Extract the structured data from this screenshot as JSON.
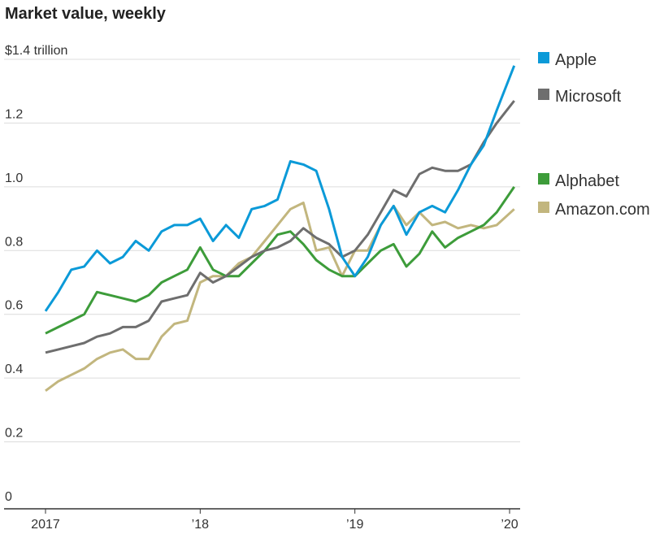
{
  "chart_data": {
    "type": "line",
    "title": "Market value, weekly",
    "y_unit_label": "$1.4 trillion",
    "ylim": [
      0,
      1.4
    ],
    "y_ticks": [
      0,
      0.2,
      0.4,
      0.6,
      0.8,
      1.0,
      1.2,
      1.4
    ],
    "y_tick_labels": [
      "0",
      "0.2",
      "0.4",
      "0.6",
      "0.8",
      "1.0",
      "1.2",
      "$1.4 trillion"
    ],
    "x_ticks": [
      2017,
      2018,
      2019,
      2020
    ],
    "x_tick_labels": [
      "2017",
      "’18",
      "’19",
      "’20"
    ],
    "xlim": [
      2017,
      2020.05
    ],
    "grid": true,
    "legend_placement": "right",
    "x": [
      2017.0,
      2017.083,
      2017.167,
      2017.25,
      2017.333,
      2017.417,
      2017.5,
      2017.583,
      2017.667,
      2017.75,
      2017.833,
      2017.917,
      2018.0,
      2018.083,
      2018.167,
      2018.25,
      2018.333,
      2018.417,
      2018.5,
      2018.583,
      2018.667,
      2018.75,
      2018.833,
      2018.917,
      2019.0,
      2019.083,
      2019.167,
      2019.25,
      2019.333,
      2019.417,
      2019.5,
      2019.583,
      2019.667,
      2019.75,
      2019.833,
      2019.917,
      2020.03
    ],
    "series": [
      {
        "name": "Apple",
        "color": "#0b9ad8",
        "legend_value": 1.38,
        "values": [
          0.61,
          0.67,
          0.74,
          0.75,
          0.8,
          0.76,
          0.78,
          0.83,
          0.8,
          0.86,
          0.88,
          0.88,
          0.9,
          0.83,
          0.88,
          0.84,
          0.93,
          0.94,
          0.96,
          1.08,
          1.07,
          1.05,
          0.93,
          0.78,
          0.72,
          0.78,
          0.88,
          0.94,
          0.85,
          0.92,
          0.94,
          0.92,
          0.99,
          1.07,
          1.13,
          1.24,
          1.38
        ]
      },
      {
        "name": "Microsoft",
        "color": "#6e6e6e",
        "legend_value": 1.27,
        "values": [
          0.48,
          0.49,
          0.5,
          0.51,
          0.53,
          0.54,
          0.56,
          0.56,
          0.58,
          0.64,
          0.65,
          0.66,
          0.73,
          0.7,
          0.72,
          0.75,
          0.78,
          0.8,
          0.81,
          0.83,
          0.87,
          0.84,
          0.82,
          0.78,
          0.8,
          0.85,
          0.92,
          0.99,
          0.97,
          1.04,
          1.06,
          1.05,
          1.05,
          1.07,
          1.14,
          1.2,
          1.27
        ]
      },
      {
        "name": "Alphabet",
        "color": "#3d9c3a",
        "legend_value": 1.0,
        "values": [
          0.54,
          0.56,
          0.58,
          0.6,
          0.67,
          0.66,
          0.65,
          0.64,
          0.66,
          0.7,
          0.72,
          0.74,
          0.81,
          0.74,
          0.72,
          0.72,
          0.76,
          0.8,
          0.85,
          0.86,
          0.82,
          0.77,
          0.74,
          0.72,
          0.72,
          0.76,
          0.8,
          0.82,
          0.75,
          0.79,
          0.86,
          0.81,
          0.84,
          0.86,
          0.88,
          0.92,
          1.0
        ]
      },
      {
        "name": "Amazon.com",
        "color": "#c2b67e",
        "legend_value": 0.93,
        "values": [
          0.36,
          0.39,
          0.41,
          0.43,
          0.46,
          0.48,
          0.49,
          0.46,
          0.46,
          0.53,
          0.57,
          0.58,
          0.7,
          0.72,
          0.72,
          0.76,
          0.78,
          0.83,
          0.88,
          0.93,
          0.95,
          0.8,
          0.81,
          0.72,
          0.8,
          0.8,
          0.88,
          0.94,
          0.88,
          0.92,
          0.88,
          0.89,
          0.87,
          0.88,
          0.87,
          0.88,
          0.93
        ]
      }
    ]
  }
}
